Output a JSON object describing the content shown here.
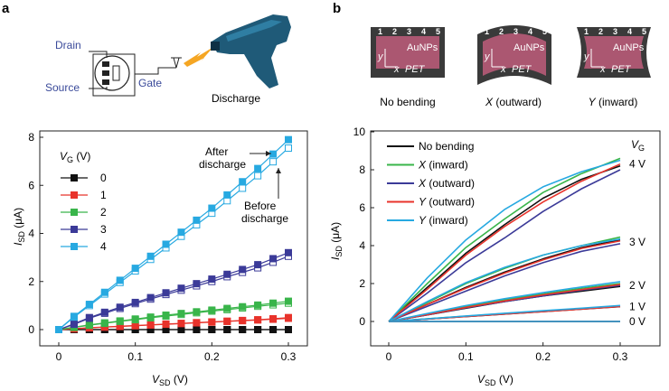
{
  "panel_a": {
    "letter": "a",
    "schematic": {
      "drain": "Drain",
      "source": "Source",
      "gate": "Gate",
      "discharge": "Discharge"
    }
  },
  "panel_b": {
    "letter": "b",
    "insets": [
      {
        "caption": "No bending",
        "numbers": [
          "1",
          "2",
          "3",
          "4",
          "5"
        ],
        "material": "AuNPs",
        "substrate": "PET",
        "axis_x": "x",
        "axis_y": "y"
      },
      {
        "caption": "X (outward)",
        "numbers": [
          "1",
          "2",
          "3",
          "4",
          "5"
        ],
        "material": "AuNPs",
        "substrate": "PET",
        "axis_x": "x",
        "axis_y": "y"
      },
      {
        "caption": "Y (inward)",
        "numbers": [
          "1",
          "2",
          "3",
          "4",
          "5"
        ],
        "material": "AuNPs",
        "substrate": "PET",
        "axis_x": "x",
        "axis_y": "y"
      }
    ]
  },
  "colors": {
    "black": "#111111",
    "red": "#e8332b",
    "green": "#39b54a",
    "purple": "#3b3a98",
    "cyan": "#27a9e1",
    "sample_body": "#b85b78"
  },
  "chart_data": [
    {
      "type": "line",
      "xlabel_main": "V",
      "xlabel_sub": "SD",
      "xlabel_unit": " (V)",
      "ylabel_main": "I",
      "ylabel_sub": "SD",
      "ylabel_unit": " (μA)",
      "xlim": [
        0,
        0.3
      ],
      "ylim": [
        0,
        8
      ],
      "xticks": [
        "0",
        "0.1",
        "0.2",
        "0.3"
      ],
      "yticks": [
        "0",
        "2",
        "4",
        "6",
        "8"
      ],
      "legend_title_main": "V",
      "legend_title_sub": "G",
      "legend_title_unit": " (V)",
      "legend_position": "top-left",
      "annotations": [
        "After",
        "discharge",
        "Before",
        "discharge"
      ],
      "x": [
        0,
        0.02,
        0.04,
        0.06,
        0.08,
        0.1,
        0.12,
        0.14,
        0.16,
        0.18,
        0.2,
        0.22,
        0.24,
        0.26,
        0.28,
        0.3
      ],
      "series": [
        {
          "name": "0",
          "color": "#111111",
          "after": [
            0,
            0,
            0,
            0,
            0,
            0,
            0,
            0,
            0,
            0,
            0,
            0,
            0,
            0,
            0,
            0
          ],
          "before": [
            0,
            0,
            0,
            0,
            0,
            0,
            0,
            0,
            0,
            0,
            0,
            0,
            0,
            0,
            0,
            0
          ]
        },
        {
          "name": "1",
          "color": "#e8332b",
          "after": [
            0,
            0.04,
            0.08,
            0.11,
            0.14,
            0.17,
            0.2,
            0.23,
            0.26,
            0.29,
            0.32,
            0.35,
            0.38,
            0.41,
            0.45,
            0.5
          ],
          "before": [
            0,
            0.03,
            0.07,
            0.1,
            0.13,
            0.16,
            0.19,
            0.22,
            0.25,
            0.28,
            0.31,
            0.34,
            0.37,
            0.4,
            0.43,
            0.47
          ]
        },
        {
          "name": "2",
          "color": "#39b54a",
          "after": [
            0,
            0.1,
            0.2,
            0.28,
            0.36,
            0.44,
            0.52,
            0.6,
            0.67,
            0.74,
            0.81,
            0.88,
            0.95,
            1.02,
            1.1,
            1.18
          ],
          "before": [
            0,
            0.09,
            0.18,
            0.26,
            0.34,
            0.41,
            0.49,
            0.56,
            0.63,
            0.7,
            0.77,
            0.83,
            0.9,
            0.97,
            1.03,
            1.1
          ]
        },
        {
          "name": "3",
          "color": "#3b3a98",
          "after": [
            0,
            0.24,
            0.5,
            0.72,
            0.93,
            1.13,
            1.33,
            1.53,
            1.72,
            1.91,
            2.1,
            2.3,
            2.5,
            2.7,
            2.95,
            3.2
          ],
          "before": [
            0,
            0.22,
            0.47,
            0.68,
            0.88,
            1.08,
            1.27,
            1.46,
            1.64,
            1.82,
            2.0,
            2.2,
            2.38,
            2.57,
            2.8,
            3.05
          ]
        },
        {
          "name": "4",
          "color": "#27a9e1",
          "after": [
            0,
            0.55,
            1.05,
            1.55,
            2.05,
            2.55,
            3.05,
            3.55,
            4.05,
            4.55,
            5.05,
            5.6,
            6.15,
            6.7,
            7.3,
            7.9
          ],
          "before": [
            0,
            0.52,
            1.0,
            1.48,
            1.96,
            2.44,
            2.92,
            3.4,
            3.88,
            4.36,
            4.84,
            5.36,
            5.88,
            6.4,
            6.98,
            7.55
          ]
        }
      ]
    },
    {
      "type": "line",
      "xlabel_main": "V",
      "xlabel_sub": "SD",
      "xlabel_unit": " (V)",
      "ylabel_main": "I",
      "ylabel_sub": "SD",
      "ylabel_unit": " (μA)",
      "xlim": [
        0,
        0.3
      ],
      "ylim": [
        0,
        10
      ],
      "xticks": [
        "0",
        "0.1",
        "0.2",
        "0.3"
      ],
      "yticks": [
        "0",
        "2",
        "4",
        "6",
        "8",
        "10"
      ],
      "legend_position": "top-left",
      "vg_title_main": "V",
      "vg_title_sub": "G",
      "vg_labels": [
        {
          "text": "4 V",
          "y": 8.3
        },
        {
          "text": "3 V",
          "y": 4.2
        },
        {
          "text": "2 V",
          "y": 1.9
        },
        {
          "text": "1 V",
          "y": 0.78
        },
        {
          "text": "0 V",
          "y": 0.0
        }
      ],
      "conditions": [
        {
          "name": "No bending",
          "color": "#111111"
        },
        {
          "name": "X (inward)",
          "color": "#39b54a"
        },
        {
          "name": "X (outward)",
          "color": "#3b3a98"
        },
        {
          "name": "Y (outward)",
          "color": "#e8332b"
        },
        {
          "name": "Y (inward)",
          "color": "#27a9e1"
        }
      ],
      "x": [
        0,
        0.05,
        0.1,
        0.15,
        0.2,
        0.25,
        0.3
      ],
      "series": [
        {
          "vg": "4 V",
          "condition": "No bending",
          "values": [
            0,
            1.8,
            3.6,
            5.1,
            6.5,
            7.5,
            8.2
          ]
        },
        {
          "vg": "4 V",
          "condition": "X (inward)",
          "values": [
            0,
            2.0,
            3.9,
            5.4,
            6.8,
            7.8,
            8.6
          ]
        },
        {
          "vg": "4 V",
          "condition": "X (outward)",
          "values": [
            0,
            1.5,
            3.1,
            4.4,
            5.8,
            7.0,
            8.0
          ]
        },
        {
          "vg": "4 V",
          "condition": "Y (outward)",
          "values": [
            0,
            1.7,
            3.5,
            5.0,
            6.3,
            7.4,
            8.3
          ]
        },
        {
          "vg": "4 V",
          "condition": "Y (inward)",
          "values": [
            0,
            2.3,
            4.3,
            5.9,
            7.1,
            7.9,
            8.5
          ]
        },
        {
          "vg": "3 V",
          "condition": "No bending",
          "values": [
            0,
            0.9,
            1.8,
            2.6,
            3.3,
            3.9,
            4.3
          ]
        },
        {
          "vg": "3 V",
          "condition": "X (inward)",
          "values": [
            0,
            1.0,
            2.0,
            2.8,
            3.5,
            4.0,
            4.45
          ]
        },
        {
          "vg": "3 V",
          "condition": "X (outward)",
          "values": [
            0,
            0.8,
            1.6,
            2.4,
            3.1,
            3.7,
            4.1
          ]
        },
        {
          "vg": "3 V",
          "condition": "Y (outward)",
          "values": [
            0,
            0.9,
            1.75,
            2.55,
            3.25,
            3.85,
            4.25
          ]
        },
        {
          "vg": "3 V",
          "condition": "Y (inward)",
          "values": [
            0,
            1.05,
            2.05,
            2.85,
            3.5,
            4.0,
            4.35
          ]
        },
        {
          "vg": "2 V",
          "condition": "No bending",
          "values": [
            0,
            0.35,
            0.7,
            1.05,
            1.35,
            1.6,
            1.85
          ]
        },
        {
          "vg": "2 V",
          "condition": "X (inward)",
          "values": [
            0,
            0.4,
            0.8,
            1.15,
            1.45,
            1.75,
            2.0
          ]
        },
        {
          "vg": "2 V",
          "condition": "X (outward)",
          "values": [
            0,
            0.35,
            0.72,
            1.05,
            1.35,
            1.65,
            1.9
          ]
        },
        {
          "vg": "2 V",
          "condition": "Y (outward)",
          "values": [
            0,
            0.36,
            0.74,
            1.08,
            1.4,
            1.68,
            1.95
          ]
        },
        {
          "vg": "2 V",
          "condition": "Y (inward)",
          "values": [
            0,
            0.42,
            0.84,
            1.2,
            1.52,
            1.82,
            2.1
          ]
        },
        {
          "vg": "1 V",
          "condition": "No bending",
          "values": [
            0,
            0.13,
            0.26,
            0.39,
            0.52,
            0.65,
            0.78
          ]
        },
        {
          "vg": "1 V",
          "condition": "X (inward)",
          "values": [
            0,
            0.14,
            0.28,
            0.42,
            0.55,
            0.68,
            0.82
          ]
        },
        {
          "vg": "1 V",
          "condition": "X (outward)",
          "values": [
            0,
            0.13,
            0.27,
            0.4,
            0.53,
            0.66,
            0.8
          ]
        },
        {
          "vg": "1 V",
          "condition": "Y (outward)",
          "values": [
            0,
            0.13,
            0.26,
            0.39,
            0.52,
            0.65,
            0.79
          ]
        },
        {
          "vg": "1 V",
          "condition": "Y (inward)",
          "values": [
            0,
            0.14,
            0.29,
            0.43,
            0.57,
            0.7,
            0.84
          ]
        },
        {
          "vg": "0 V",
          "condition": "No bending",
          "values": [
            0,
            0,
            0,
            0,
            0,
            0,
            0
          ]
        },
        {
          "vg": "0 V",
          "condition": "X (inward)",
          "values": [
            0,
            0,
            0,
            0,
            0,
            0,
            0
          ]
        },
        {
          "vg": "0 V",
          "condition": "X (outward)",
          "values": [
            0,
            0,
            0,
            0,
            0,
            0,
            0
          ]
        },
        {
          "vg": "0 V",
          "condition": "Y (outward)",
          "values": [
            0,
            0,
            0,
            0,
            0,
            0,
            0
          ]
        },
        {
          "vg": "0 V",
          "condition": "Y (inward)",
          "values": [
            0,
            0,
            0,
            0,
            0,
            0,
            0
          ]
        }
      ]
    }
  ]
}
